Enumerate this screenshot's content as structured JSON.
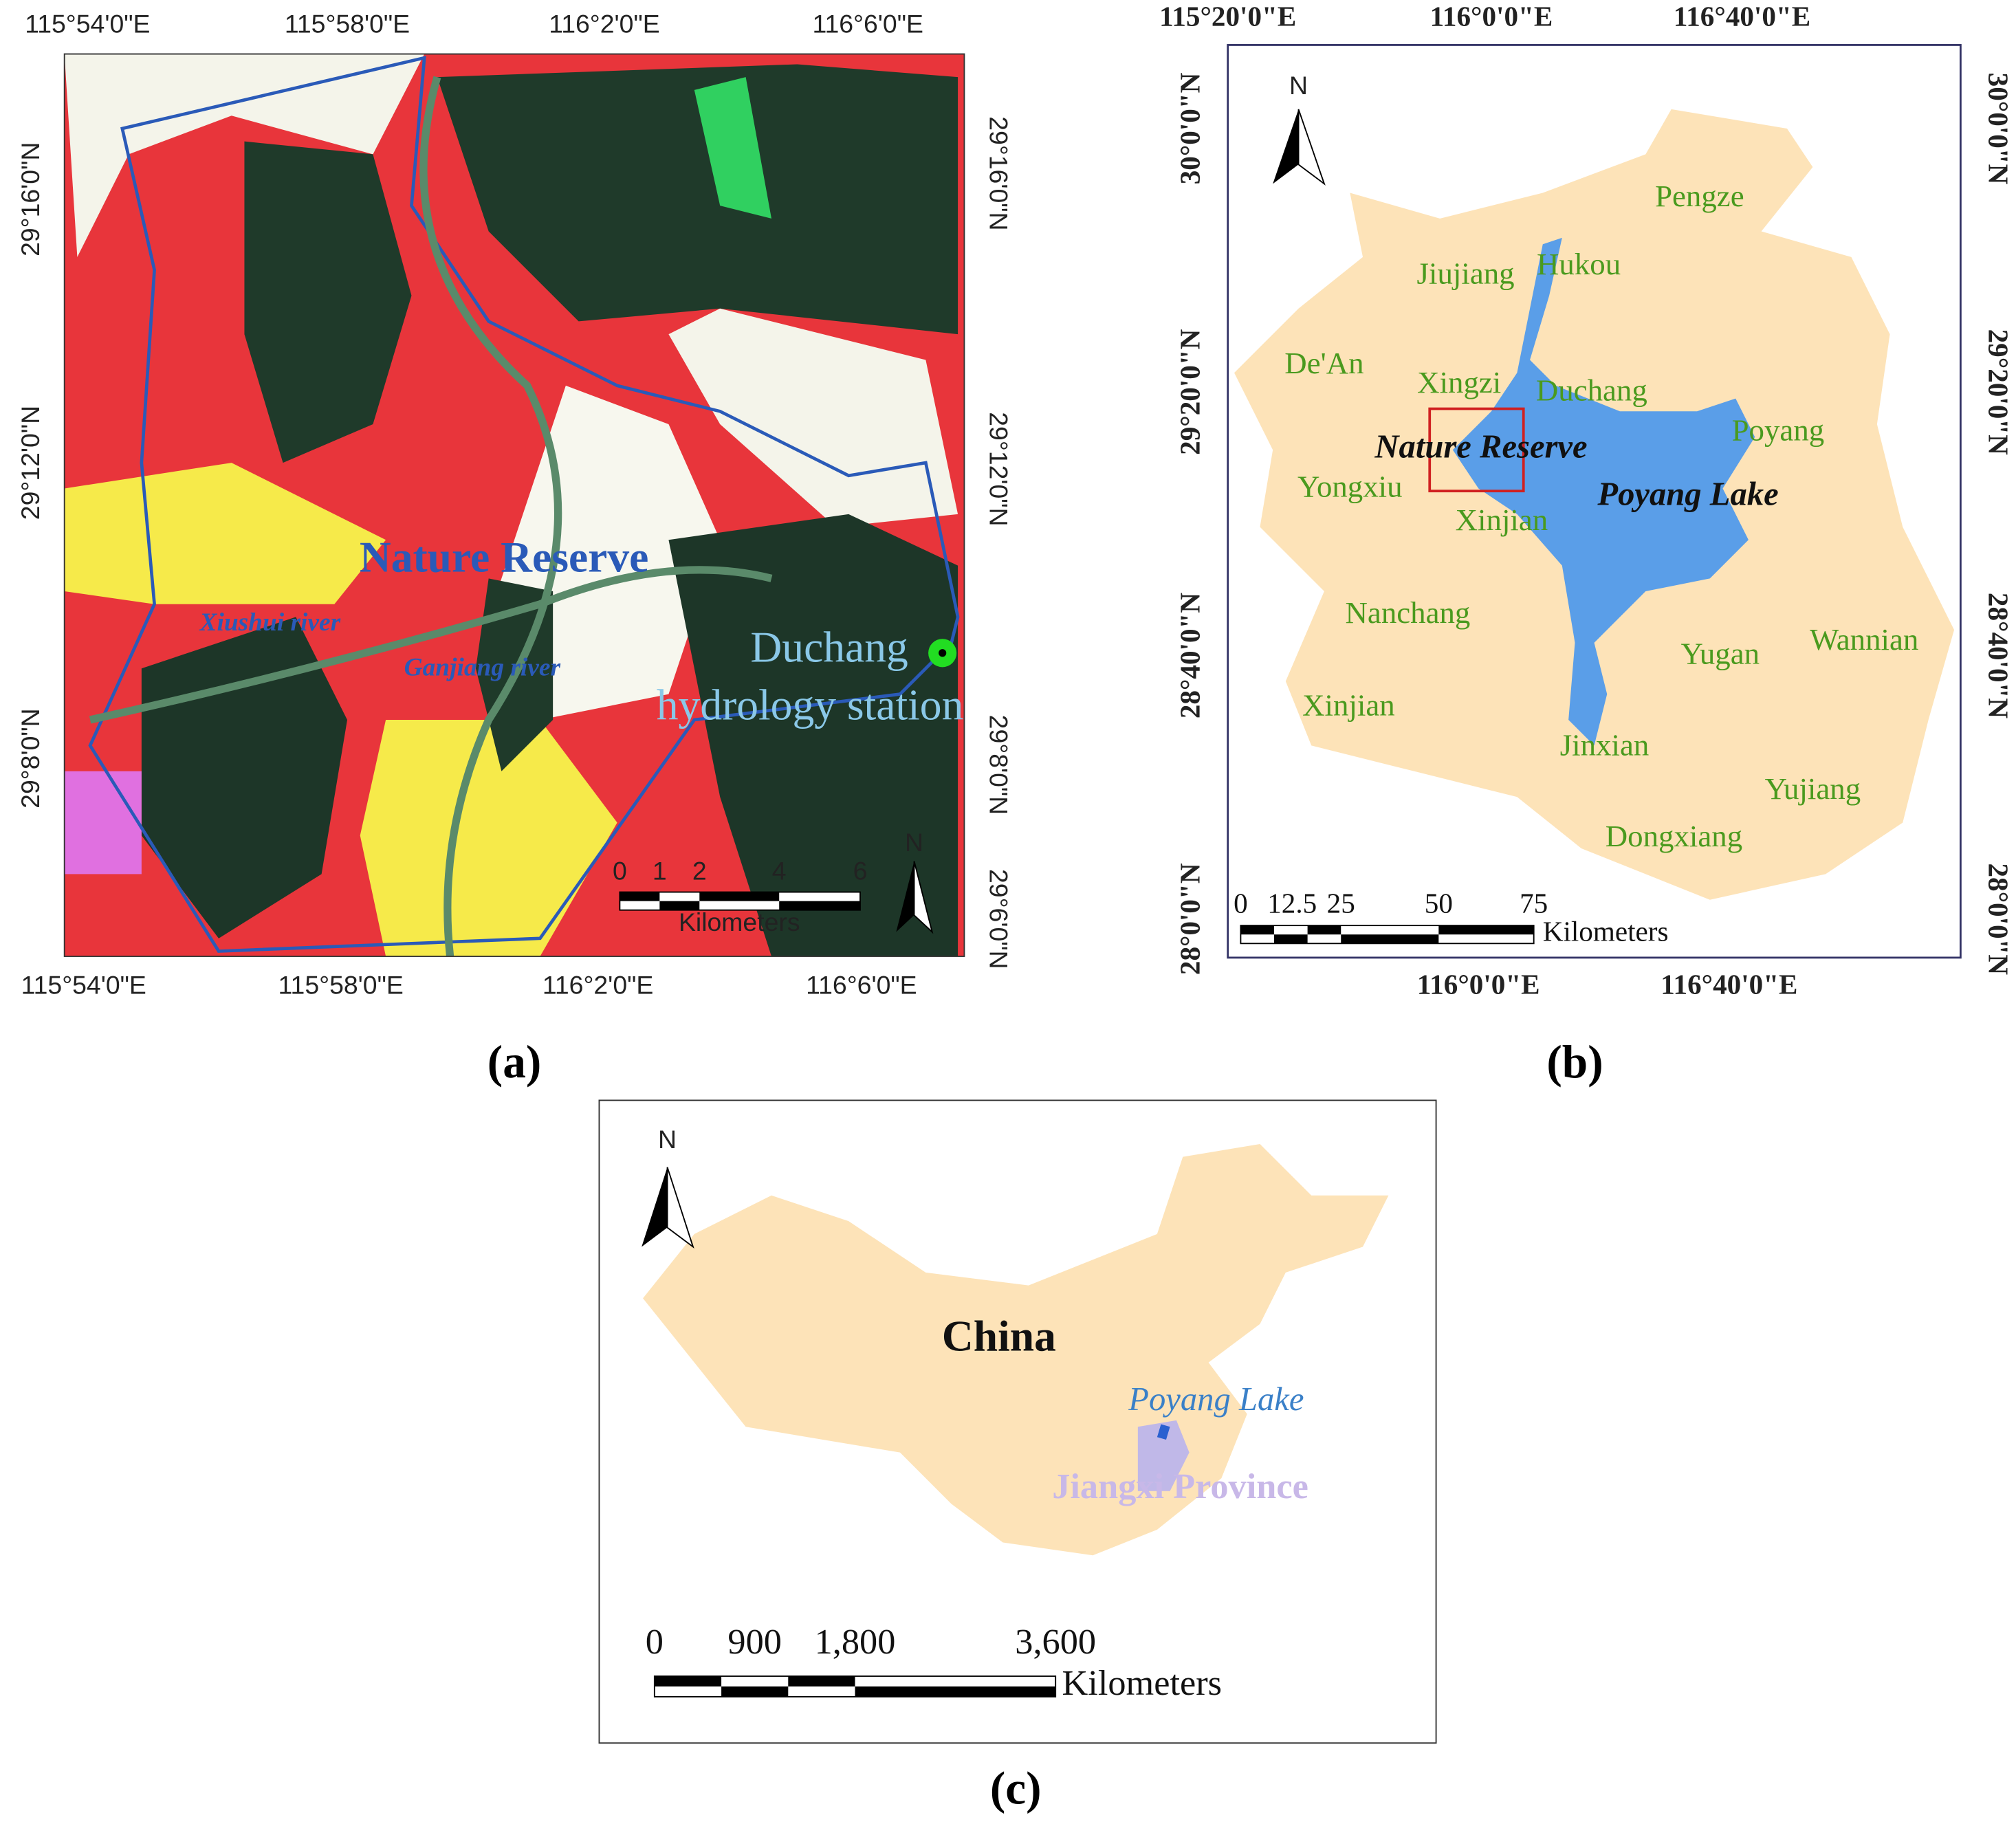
{
  "panel_a": {
    "caption": "(a)",
    "top_labels": [
      "115°54'0\"E",
      "115°58'0\"E",
      "116°2'0\"E",
      "116°6'0\"E"
    ],
    "bottom_labels": [
      "115°54'0\"E",
      "115°58'0\"E",
      "116°2'0\"E",
      "116°6'0\"E"
    ],
    "left_labels": [
      "29°16'0\"N",
      "29°12'0\"N",
      "29°8'0\"N"
    ],
    "right_labels": [
      "29°16'0\"N",
      "29°12'0\"N",
      "29°8'0\"N",
      "29°6'0\"N"
    ],
    "reserve": "Nature Reserve",
    "xiushui": "Xiushui river",
    "ganjiang": "Ganjiang river",
    "station_name": "Duchang",
    "station_type": "hydrology station",
    "scale_ticks": [
      "0",
      "1",
      "2",
      "4",
      "6"
    ],
    "scale_unit": "Kilometers",
    "north": "N"
  },
  "panel_b": {
    "caption": "(b)",
    "top_labels": [
      "115°20'0\"E",
      "116°0'0\"E",
      "116°40'0\"E"
    ],
    "bottom_labels": [
      "116°0'0\"E",
      "116°40'0\"E"
    ],
    "left_labels": [
      "30°0'0\"N",
      "29°20'0\"N",
      "28°40'0\"N",
      "28°0'0\"N"
    ],
    "right_labels": [
      "30°0'0\"N",
      "29°20'0\"N",
      "28°40'0\"N",
      "28°0'0\"N"
    ],
    "places": [
      "Pengze",
      "Hukou",
      "Jiujiang",
      "De'An",
      "Xingzi",
      "Duchang",
      "Poyang",
      "Yongxiu",
      "Xinjian",
      "Nanchang",
      "Wannian",
      "Yugan",
      "Xinjian",
      "Jinxian",
      "Yujiang",
      "Dongxiang"
    ],
    "reserve": "Nature Reserve",
    "lake": "Poyang Lake",
    "scale_ticks": [
      "0",
      "12.5",
      "25",
      "50",
      "75"
    ],
    "scale_unit": "Kilometers",
    "north": "N"
  },
  "panel_c": {
    "caption": "(c)",
    "country": "China",
    "lake": "Poyang Lake",
    "province": "Jiangxi Province",
    "scale_ticks": [
      "0",
      "900",
      "1,800",
      "3,600"
    ],
    "scale_unit": "Kilometers",
    "north": "N"
  }
}
